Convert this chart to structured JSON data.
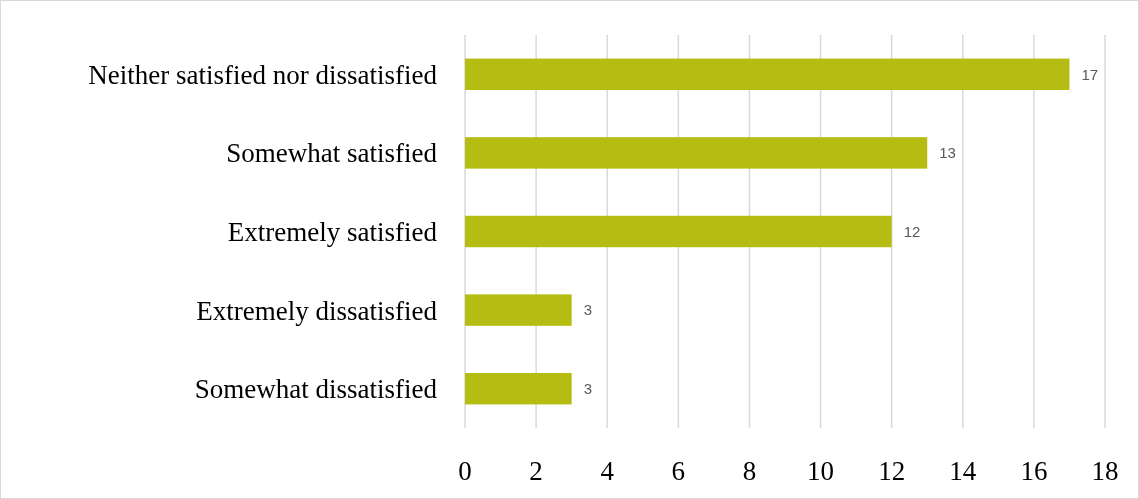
{
  "chart_data": {
    "type": "bar",
    "orientation": "horizontal",
    "categories": [
      "Neither satisfied nor dissatisfied",
      "Somewhat satisfied",
      "Extremely satisfied",
      "Extremely dissatisfied",
      "Somewhat dissatisfied"
    ],
    "values": [
      17,
      13,
      12,
      3,
      3
    ],
    "color": "#b5bd12",
    "xlim": [
      0,
      18
    ],
    "xticks": [
      0,
      2,
      4,
      6,
      8,
      10,
      12,
      14,
      16,
      18
    ],
    "grid": "x",
    "data_labels": true
  }
}
